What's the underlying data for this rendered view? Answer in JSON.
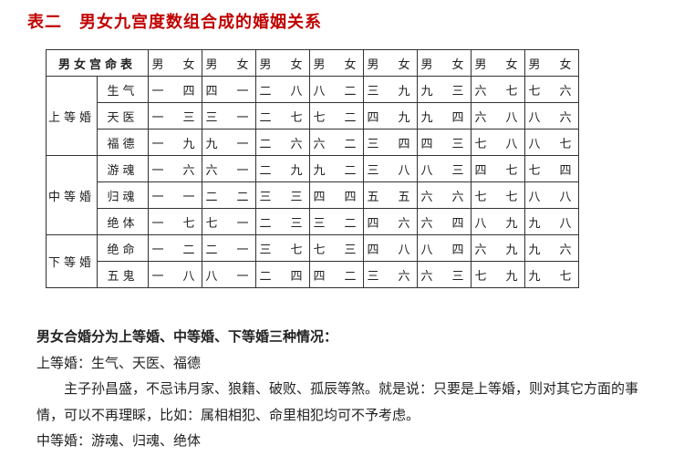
{
  "page_title": "表二　男女九宫度数组合成的婚姻关系",
  "table": {
    "corner_label": "男女宫命表",
    "col_headers": [
      "男　女",
      "男　女",
      "男　女",
      "男　女",
      "男　女",
      "男　女",
      "男　女",
      "男　女"
    ],
    "groups": [
      {
        "group_label": "上等婚",
        "rows": [
          {
            "label": "生气",
            "cells": [
              "一　四",
              "四　一",
              "二　八",
              "八　二",
              "三　九",
              "九　三",
              "六　七",
              "七　六"
            ]
          },
          {
            "label": "天医",
            "cells": [
              "一　三",
              "三　一",
              "二　七",
              "七　二",
              "四　九",
              "九　四",
              "六　八",
              "八　六"
            ]
          },
          {
            "label": "福德",
            "cells": [
              "一　九",
              "九　一",
              "二　六",
              "六　二",
              "三　四",
              "四　三",
              "七　八",
              "八　七"
            ]
          }
        ]
      },
      {
        "group_label": "中等婚",
        "rows": [
          {
            "label": "游魂",
            "cells": [
              "一　六",
              "六　一",
              "二　九",
              "九　二",
              "三　八",
              "八　三",
              "四　七",
              "七　四"
            ]
          },
          {
            "label": "归魂",
            "cells": [
              "一　一",
              "二　二",
              "三　三",
              "四　四",
              "五　五",
              "六　六",
              "七　七",
              "八　八"
            ]
          },
          {
            "label": "绝体",
            "cells": [
              "一　七",
              "七　一",
              "二　三",
              "三　二",
              "四　六",
              "六　四",
              "八　九",
              "九　八"
            ]
          }
        ]
      },
      {
        "group_label": "下等婚",
        "rows": [
          {
            "label": "绝命",
            "cells": [
              "一　二",
              "二　一",
              "三　七",
              "七　三",
              "四　八",
              "八　四",
              "六　九",
              "九　六"
            ]
          },
          {
            "label": "五鬼",
            "cells": [
              "一　八",
              "八　一",
              "二　四",
              "四　二",
              "三　六",
              "六　三",
              "七　九",
              "九　七"
            ]
          }
        ]
      }
    ]
  },
  "desc": {
    "heading": "男女合婚分为上等婚、中等婚、下等婚三种情况：",
    "l1": "上等婚：生气、天医、福德",
    "l2": "主子孙昌盛，不忌讳月家、狼籍、破败、孤辰等煞。就是说：只要是上等婚，则对其它方面的事情，可以不再理睬，比如：属相相犯、命里相犯均可不予考虑。",
    "l3": "中等婚：游魂、归魂、绝体"
  }
}
